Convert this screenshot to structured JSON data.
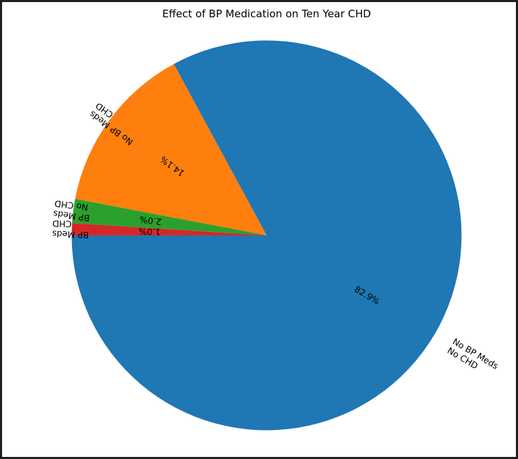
{
  "chart_data": {
    "type": "pie",
    "title": "Effect of BP Medication on Ten Year CHD",
    "slices": [
      {
        "label": [
          "No BP Meds",
          "No CHD"
        ],
        "value": 82.9,
        "pct_label": "82.9%",
        "color": "#1f77b4"
      },
      {
        "label": [
          "No BP Meds",
          "CHD"
        ],
        "value": 14.1,
        "pct_label": "14.1%",
        "color": "#ff7f0e"
      },
      {
        "label": [
          "BP Meds",
          "No CHD"
        ],
        "value": 2.0,
        "pct_label": "2.0%",
        "color": "#2ca02c"
      },
      {
        "label": [
          "BP Meds",
          "CHD"
        ],
        "value": 1.0,
        "pct_label": "1.0%",
        "color": "#d62728"
      }
    ],
    "legend": "none"
  }
}
